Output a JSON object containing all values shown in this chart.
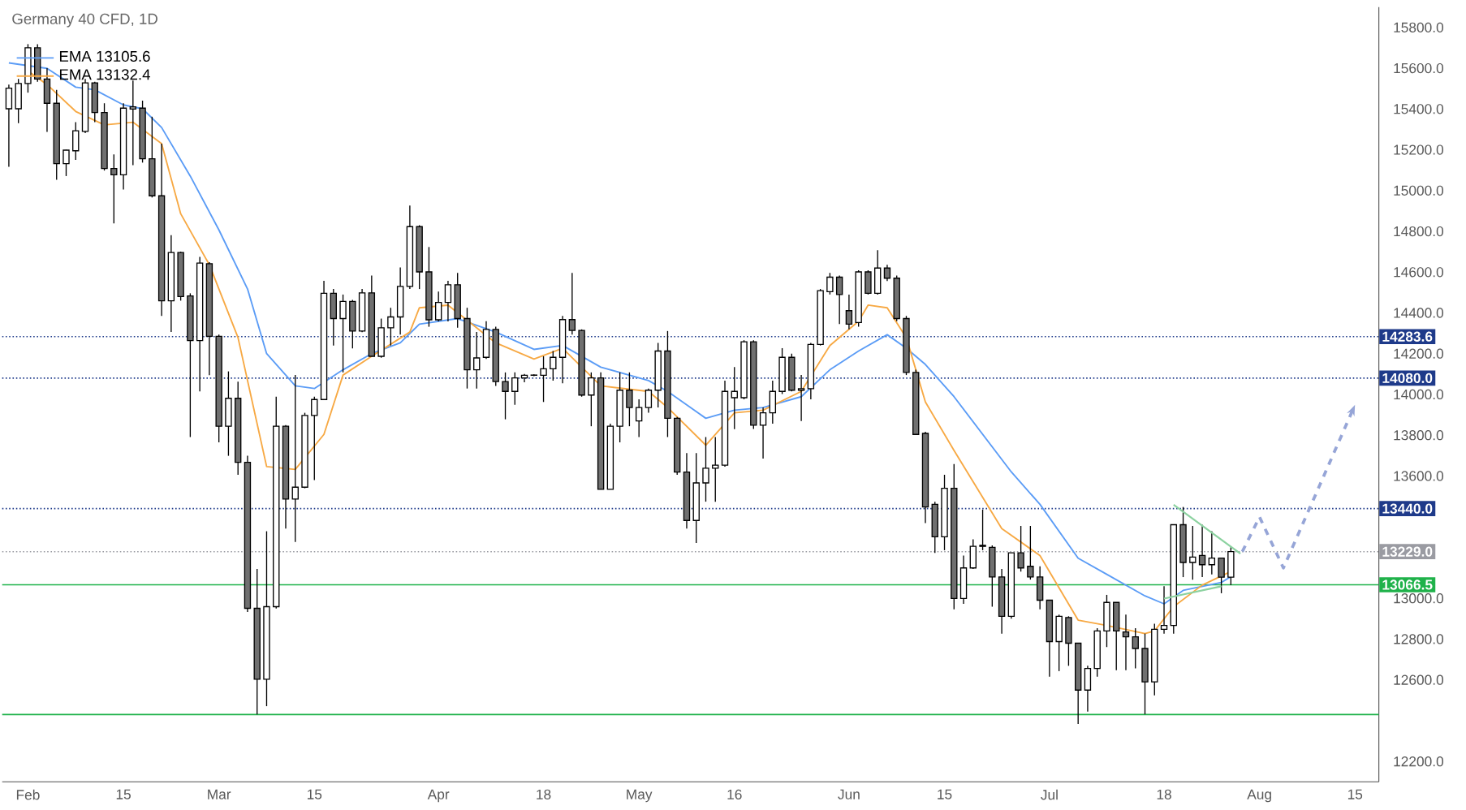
{
  "chart_data": {
    "type": "candlestick",
    "title": "Germany 40 CFD, 1D",
    "categories": [
      null,
      null,
      "Feb",
      null,
      null,
      null,
      null,
      null,
      null,
      null,
      null,
      null,
      "15",
      null,
      null,
      null,
      null,
      null,
      null,
      null,
      null,
      null,
      "Mar",
      null,
      null,
      null,
      null,
      null,
      null,
      null,
      null,
      null,
      "15",
      null,
      null,
      null,
      null,
      null,
      null,
      null,
      null,
      null,
      null,
      null,
      null,
      "Apr",
      null,
      null,
      null,
      null,
      null,
      null,
      null,
      null,
      null,
      null,
      "18",
      null,
      null,
      null,
      null,
      null,
      null,
      null,
      null,
      null,
      "May",
      null,
      null,
      null,
      null,
      null,
      null,
      null,
      null,
      null,
      "16",
      null,
      null,
      null,
      null,
      null,
      null,
      null,
      null,
      null,
      null,
      null,
      "Jun",
      null,
      null,
      null,
      null,
      null,
      null,
      null,
      null,
      null,
      "15",
      null,
      null,
      null,
      null,
      null,
      null,
      null,
      null,
      null,
      null,
      "Jul",
      null,
      null,
      null,
      null,
      null,
      null,
      null,
      null,
      null,
      null,
      null,
      "18",
      null,
      null,
      null,
      null,
      null,
      null,
      null,
      null,
      null,
      "Aug",
      null,
      null,
      null,
      null,
      null,
      null,
      null,
      null,
      null,
      "15",
      null,
      null
    ],
    "ohlc": [
      [
        15401,
        15520,
        15116,
        15502
      ],
      [
        15401,
        15547,
        15330,
        15525
      ],
      [
        15525,
        15718,
        15480,
        15700
      ],
      [
        15700,
        15718,
        15533,
        15547
      ],
      [
        15547,
        15600,
        15288,
        15428
      ],
      [
        15428,
        15494,
        15053,
        15132
      ],
      [
        15132,
        15200,
        15071,
        15198
      ],
      [
        15195,
        15335,
        15150,
        15293
      ],
      [
        15290,
        15547,
        15282,
        15528
      ],
      [
        15528,
        15533,
        15335,
        15383
      ],
      [
        15383,
        15428,
        15098,
        15108
      ],
      [
        15108,
        15177,
        14839,
        15077
      ],
      [
        15077,
        15428,
        15005,
        15404
      ],
      [
        15400,
        15539,
        15124,
        15410
      ],
      [
        15404,
        15441,
        15137,
        15156
      ],
      [
        15156,
        15362,
        14966,
        14974
      ],
      [
        14974,
        15230,
        14385,
        14459
      ],
      [
        14459,
        14781,
        14306,
        14696
      ],
      [
        14696,
        14700,
        14460,
        14480
      ],
      [
        14483,
        14496,
        13791,
        14264
      ],
      [
        14264,
        14675,
        14015,
        14644
      ],
      [
        14641,
        14649,
        14094,
        14285
      ],
      [
        14285,
        14293,
        13765,
        13844
      ],
      [
        13844,
        14113,
        13699,
        13981
      ],
      [
        13981,
        14063,
        13606,
        13667
      ],
      [
        13667,
        13699,
        12933,
        12951
      ],
      [
        12951,
        13144,
        12431,
        12603
      ],
      [
        12603,
        13329,
        12471,
        12959
      ],
      [
        12959,
        13989,
        12950,
        13844
      ],
      [
        13844,
        13850,
        13342,
        13487
      ],
      [
        13487,
        14095,
        13276,
        13545
      ],
      [
        13545,
        13910,
        13540,
        13897
      ],
      [
        13897,
        13989,
        13580,
        13975
      ],
      [
        13975,
        14557,
        13975,
        14496
      ],
      [
        14496,
        14517,
        14240,
        14372
      ],
      [
        14372,
        14490,
        14108,
        14456
      ],
      [
        14456,
        14464,
        14226,
        14311
      ],
      [
        14311,
        14517,
        14305,
        14498
      ],
      [
        14498,
        14583,
        14187,
        14187
      ],
      [
        14187,
        14372,
        14180,
        14327
      ],
      [
        14327,
        14425,
        14240,
        14380
      ],
      [
        14380,
        14623,
        14293,
        14530
      ],
      [
        14530,
        14926,
        14517,
        14823
      ],
      [
        14823,
        14830,
        14517,
        14601
      ],
      [
        14601,
        14723,
        14332,
        14366
      ],
      [
        14366,
        14504,
        14358,
        14451
      ],
      [
        14451,
        14557,
        14358,
        14538
      ],
      [
        14538,
        14596,
        14327,
        14372
      ],
      [
        14372,
        14425,
        14029,
        14121
      ],
      [
        14121,
        14306,
        14029,
        14179
      ],
      [
        14182,
        14359,
        14174,
        14319
      ],
      [
        14319,
        14332,
        14042,
        14063
      ],
      [
        14063,
        14108,
        13878,
        14015
      ],
      [
        14015,
        14108,
        13949,
        14081
      ],
      [
        14081,
        14100,
        14060,
        14094
      ],
      [
        14094,
        14098,
        14090,
        14095
      ],
      [
        14094,
        14187,
        13963,
        14126
      ],
      [
        14126,
        14213,
        14068,
        14182
      ],
      [
        14182,
        14385,
        14055,
        14367
      ],
      [
        14367,
        14596,
        14293,
        14314
      ],
      [
        14314,
        14319,
        13989,
        13997
      ],
      [
        13997,
        14108,
        13844,
        14081
      ],
      [
        14081,
        14108,
        13535,
        13535
      ],
      [
        13535,
        13857,
        13535,
        13844
      ],
      [
        13844,
        14108,
        13765,
        14021
      ],
      [
        14021,
        14108,
        13844,
        13936
      ],
      [
        13870,
        13976,
        13791,
        13936
      ],
      [
        13936,
        14029,
        13910,
        14021
      ],
      [
        14021,
        14253,
        13936,
        14213
      ],
      [
        14213,
        14311,
        13791,
        13883
      ],
      [
        13883,
        13889,
        13606,
        13619
      ],
      [
        13619,
        13712,
        13342,
        13382
      ],
      [
        13382,
        13712,
        13271,
        13566
      ],
      [
        13566,
        13791,
        13474,
        13638
      ],
      [
        13638,
        13791,
        13474,
        13653
      ],
      [
        13653,
        14068,
        13646,
        14015
      ],
      [
        13984,
        14134,
        13830,
        14015
      ],
      [
        13984,
        14266,
        13976,
        14258
      ],
      [
        14258,
        14266,
        13831,
        13849
      ],
      [
        13849,
        13936,
        13685,
        13910
      ],
      [
        13910,
        14068,
        13857,
        14015
      ],
      [
        14015,
        14227,
        14002,
        14182
      ],
      [
        14182,
        14200,
        14015,
        14021
      ],
      [
        14021,
        14095,
        13870,
        14028
      ],
      [
        14028,
        14253,
        13976,
        14245
      ],
      [
        14245,
        14517,
        14240,
        14509
      ],
      [
        14504,
        14596,
        14490,
        14575
      ],
      [
        14575,
        14583,
        14345,
        14490
      ],
      [
        14411,
        14490,
        14319,
        14345
      ],
      [
        14353,
        14609,
        14332,
        14601
      ],
      [
        14601,
        14609,
        14490,
        14496
      ],
      [
        14496,
        14707,
        14490,
        14620
      ],
      [
        14620,
        14636,
        14556,
        14570
      ],
      [
        14570,
        14583,
        14359,
        14372
      ],
      [
        14372,
        14385,
        14095,
        14108
      ],
      [
        14108,
        14121,
        13804,
        13804
      ],
      [
        13809,
        13817,
        13369,
        13448
      ],
      [
        13461,
        13474,
        13223,
        13302
      ],
      [
        13302,
        13606,
        13236,
        13540
      ],
      [
        13540,
        13659,
        12946,
        12999
      ],
      [
        12999,
        13210,
        12973,
        13149
      ],
      [
        13149,
        13289,
        13144,
        13255
      ],
      [
        13255,
        13435,
        13236,
        13260
      ],
      [
        13250,
        13260,
        12959,
        13105
      ],
      [
        13105,
        13144,
        12827,
        12912
      ],
      [
        12912,
        13223,
        12900,
        13223
      ],
      [
        13223,
        13355,
        13131,
        13149
      ],
      [
        13157,
        13355,
        13092,
        13105
      ],
      [
        13105,
        13157,
        12946,
        12991
      ],
      [
        12991,
        12991,
        12616,
        12788
      ],
      [
        12788,
        12920,
        12643,
        12912
      ],
      [
        12906,
        12912,
        12669,
        12780
      ],
      [
        12780,
        12780,
        12384,
        12550
      ],
      [
        12550,
        12669,
        12445,
        12656
      ],
      [
        12656,
        12854,
        12616,
        12840
      ],
      [
        12840,
        13017,
        12761,
        12980
      ],
      [
        12980,
        12980,
        12648,
        12840
      ],
      [
        12835,
        12920,
        12648,
        12811
      ],
      [
        12811,
        12854,
        12656,
        12754
      ],
      [
        12754,
        12827,
        12431,
        12590
      ],
      [
        12590,
        12875,
        12524,
        12848
      ],
      [
        12848,
        13060,
        12827,
        12867
      ],
      [
        12867,
        13361,
        12827,
        13361
      ],
      [
        13361,
        13448,
        13104,
        13176
      ],
      [
        13176,
        13355,
        13091,
        13202
      ],
      [
        13210,
        13361,
        13104,
        13165
      ],
      [
        13165,
        13329,
        13117,
        13197
      ],
      [
        13197,
        13197,
        13025,
        13104
      ],
      [
        13104,
        13255,
        13065,
        13229
      ],
      null,
      null,
      null,
      null,
      null,
      null,
      null,
      null,
      null,
      null,
      null,
      null,
      null,
      null,
      null
    ],
    "series": [
      {
        "name": "EMA 13105.6",
        "type": "line",
        "color": "#5b9cf6",
        "values": [
          15626,
          null,
          null,
          null,
          15599,
          null,
          null,
          15507,
          null,
          15494,
          null,
          null,
          15420,
          null,
          15401,
          null,
          15309,
          null,
          null,
          15071,
          null,
          null,
          14807,
          null,
          null,
          14517,
          null,
          14200,
          null,
          null,
          14042,
          null,
          14029,
          null,
          null,
          14121,
          null,
          null,
          14200,
          null,
          null,
          14253,
          null,
          14345,
          null,
          null,
          null,
          14372,
          null,
          null,
          null,
          14306,
          null,
          null,
          null,
          14221,
          null,
          null,
          14240,
          null,
          null,
          null,
          14134,
          null,
          null,
          null,
          null,
          14068,
          null,
          14015,
          null,
          null,
          null,
          13883,
          null,
          null,
          13923,
          null,
          null,
          13936,
          null,
          null,
          null,
          13989,
          null,
          null,
          14121,
          null,
          null,
          14213,
          null,
          null,
          14293,
          null,
          14227,
          null,
          14147,
          null,
          null,
          13989,
          null,
          null,
          null,
          null,
          null,
          13620,
          null,
          null,
          13461,
          null,
          null,
          null,
          13197,
          null,
          null,
          13118,
          null,
          null,
          null,
          13012,
          null,
          12973,
          null,
          13039,
          null,
          null,
          null,
          13078,
          13106,
          null,
          null,
          null,
          null,
          null,
          null,
          null,
          null,
          null,
          null,
          null,
          null,
          null,
          null,
          null
        ]
      },
      {
        "name": "EMA 13132.4",
        "type": "line",
        "color": "#f7a944",
        "values": [
          null,
          null,
          15586,
          null,
          15520,
          null,
          null,
          15388,
          null,
          null,
          15322,
          null,
          null,
          15335,
          null,
          null,
          15230,
          null,
          14886,
          null,
          null,
          14636,
          null,
          null,
          14279,
          null,
          null,
          13646,
          null,
          null,
          13632,
          null,
          null,
          13804,
          null,
          14095,
          null,
          null,
          14187,
          null,
          null,
          null,
          14306,
          14425,
          null,
          null,
          14438,
          null,
          null,
          null,
          null,
          14253,
          null,
          null,
          null,
          14174,
          null,
          null,
          14226,
          null,
          null,
          null,
          14042,
          null,
          null,
          null,
          null,
          14015,
          null,
          13936,
          null,
          null,
          null,
          13751,
          null,
          null,
          13910,
          null,
          null,
          13923,
          null,
          null,
          null,
          14015,
          null,
          null,
          14240,
          null,
          null,
          14359,
          14438,
          null,
          14425,
          null,
          14279,
          null,
          13963,
          null,
          null,
          13725,
          null,
          null,
          null,
          null,
          13342,
          null,
          null,
          null,
          13210,
          null,
          null,
          null,
          12893,
          null,
          null,
          12867,
          null,
          null,
          null,
          12827,
          12840,
          null,
          12959,
          null,
          null,
          13065,
          null,
          null,
          13132,
          null,
          null,
          null,
          null,
          null,
          null,
          null,
          null,
          null,
          null,
          null,
          null,
          null,
          null,
          null
        ]
      }
    ],
    "ylim": [
      12100,
      15900
    ],
    "yticks": [
      {
        "value": 12200,
        "label": "12200.0"
      },
      {
        "value": 12600,
        "label": "12600.0"
      },
      {
        "value": 12800,
        "label": "12800.0"
      },
      {
        "value": 13000,
        "label": "13000.0"
      },
      {
        "value": 13600,
        "label": "13600.0"
      },
      {
        "value": 13800,
        "label": "13800.0"
      },
      {
        "value": 14000,
        "label": "14000.0"
      },
      {
        "value": 14200,
        "label": "14200.0"
      },
      {
        "value": 14400,
        "label": "14400.0"
      },
      {
        "value": 14600,
        "label": "14600.0"
      },
      {
        "value": 14800,
        "label": "14800.0"
      },
      {
        "value": 15000,
        "label": "15000.0"
      },
      {
        "value": 15200,
        "label": "15200.0"
      },
      {
        "value": 15400,
        "label": "15400.0"
      },
      {
        "value": 15600,
        "label": "15600.0"
      },
      {
        "value": 15800,
        "label": "15800.0"
      }
    ],
    "ref_lines": [
      {
        "axis": "y",
        "value": 14283.6,
        "label": "14283.6",
        "color": "#1e3a8a",
        "line_style": "dotted"
      },
      {
        "axis": "y",
        "value": 14080.0,
        "label": "14080.0",
        "color": "#1e3a8a",
        "line_style": "dotted"
      },
      {
        "axis": "y",
        "value": 13440.0,
        "label": "13440.0",
        "color": "#1e3a8a",
        "line_style": "dotted"
      },
      {
        "axis": "y",
        "value": 13229.0,
        "label": "13229.0",
        "color": "#9a9ba2",
        "line_style": "dotted"
      },
      {
        "axis": "y",
        "value": 13066.5,
        "label": "13066.5",
        "color": "#1fb24a",
        "line_style": "solid"
      },
      {
        "axis": "y",
        "value": 12430,
        "label": null,
        "color": "#1fb24a",
        "line_style": "solid"
      }
    ],
    "legend": "top left",
    "grid": false
  }
}
